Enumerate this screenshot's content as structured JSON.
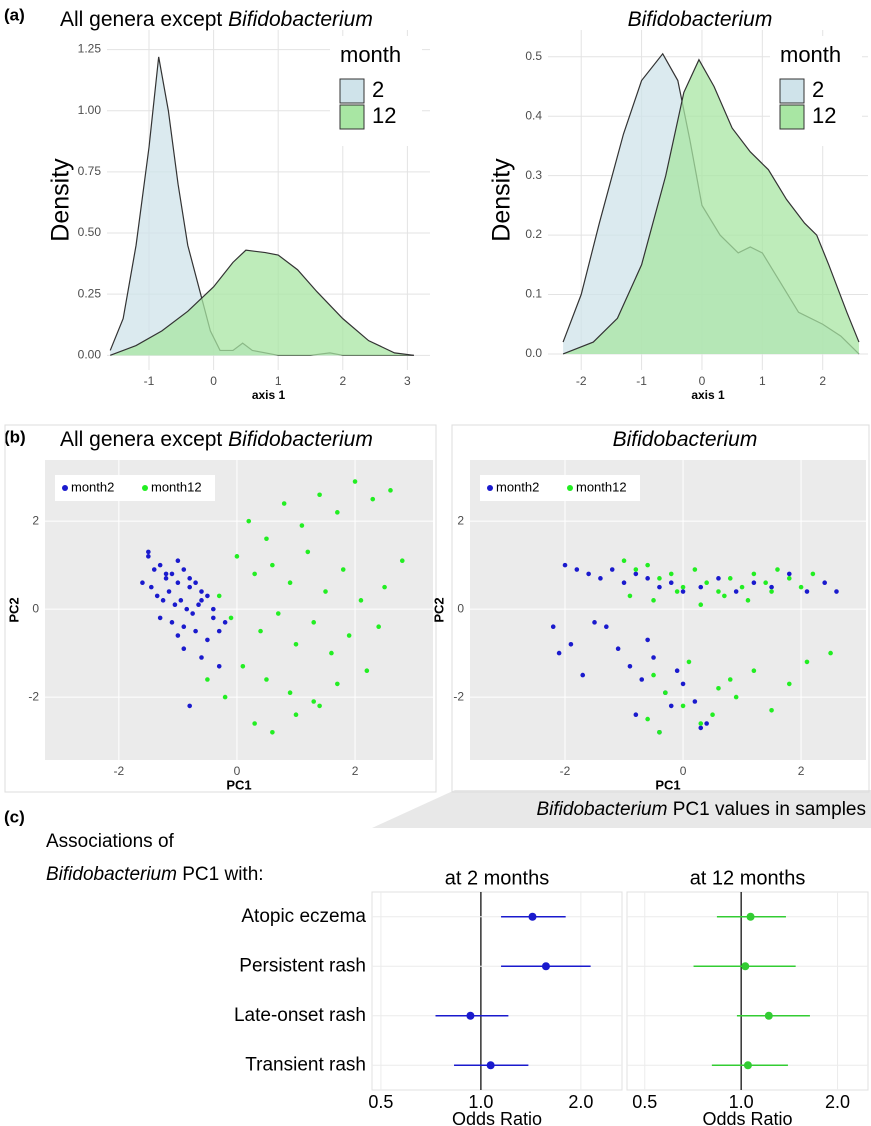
{
  "figure": {
    "panel_labels": [
      "(a)",
      "(b)",
      "(c)"
    ],
    "c_heading_left": [
      [
        {
          "text": "Associations of"
        }
      ],
      [
        {
          "text": "Bifidobacterium",
          "style": "italic"
        },
        {
          "text": " PC1 with:"
        }
      ]
    ],
    "c_heading_right": [
      {
        "text": "Bifidobacterium",
        "style": "italic"
      },
      {
        "text": " PC1 values in samples"
      }
    ]
  },
  "chart_data": [
    {
      "type": "density",
      "title": [
        {
          "text": "All genera except "
        },
        {
          "text": "Bifidobacterium",
          "style": "italic"
        }
      ],
      "xlabel": "axis 1",
      "ylabel": "Density",
      "legend_title": "month",
      "legend": "top-right",
      "xlim": [
        -1.65,
        3.35
      ],
      "ylim": [
        -0.06,
        1.33
      ],
      "xticks": [
        -1,
        0,
        1,
        2,
        3
      ],
      "yticks": [
        {
          "value": 0,
          "label": "0.00"
        },
        {
          "value": 0.25,
          "label": "0.25"
        },
        {
          "value": 0.5,
          "label": "0.50"
        },
        {
          "value": 0.75,
          "label": "0.75"
        },
        {
          "value": 1,
          "label": "1.00"
        },
        {
          "value": 1.25,
          "label": "1.25"
        }
      ],
      "series": [
        {
          "name": "2",
          "color": "#cfe3ea",
          "x": [
            -1.6,
            -1.4,
            -1.2,
            -1.0,
            -0.85,
            -0.7,
            -0.55,
            -0.4,
            -0.2,
            -0.05,
            0.1,
            0.3,
            0.45,
            0.6,
            1.0,
            1.5,
            1.8,
            2.0,
            3.1
          ],
          "values": [
            0.02,
            0.15,
            0.45,
            0.85,
            1.22,
            1.0,
            0.7,
            0.45,
            0.25,
            0.1,
            0.02,
            0.02,
            0.05,
            0.02,
            0.0,
            0.0,
            0.01,
            0.0,
            0.0
          ]
        },
        {
          "name": "12",
          "color": "#a8e6a3",
          "x": [
            -1.6,
            -1.2,
            -0.8,
            -0.4,
            0.0,
            0.3,
            0.5,
            0.8,
            1.0,
            1.3,
            1.6,
            2.0,
            2.4,
            2.8,
            3.1
          ],
          "values": [
            0.0,
            0.04,
            0.1,
            0.18,
            0.28,
            0.38,
            0.43,
            0.42,
            0.41,
            0.35,
            0.26,
            0.15,
            0.06,
            0.01,
            0.0
          ]
        }
      ]
    },
    {
      "type": "density",
      "title": [
        {
          "text": "Bifidobacterium",
          "style": "italic"
        }
      ],
      "xlabel": "axis 1",
      "ylabel": "Density",
      "legend_title": "month",
      "legend": "top-right",
      "xlim": [
        -2.55,
        2.75
      ],
      "ylim": [
        -0.027,
        0.545
      ],
      "xticks": [
        -2,
        -1,
        0,
        1,
        2
      ],
      "yticks": [
        {
          "value": 0,
          "label": "0.0"
        },
        0.1,
        0.2,
        0.3,
        0.4,
        0.5
      ],
      "series": [
        {
          "name": "2",
          "color": "#cfe3ea",
          "x": [
            -2.3,
            -2.0,
            -1.7,
            -1.3,
            -1.0,
            -0.65,
            -0.4,
            -0.2,
            0.0,
            0.3,
            0.6,
            0.8,
            1.0,
            1.3,
            1.6,
            2.0,
            2.3,
            2.6
          ],
          "values": [
            0.02,
            0.1,
            0.22,
            0.37,
            0.46,
            0.505,
            0.46,
            0.36,
            0.25,
            0.2,
            0.17,
            0.18,
            0.17,
            0.12,
            0.07,
            0.05,
            0.03,
            0.0
          ]
        },
        {
          "name": "12",
          "color": "#a8e6a3",
          "x": [
            -2.3,
            -1.8,
            -1.4,
            -1.0,
            -0.6,
            -0.3,
            -0.05,
            0.2,
            0.5,
            0.8,
            1.1,
            1.4,
            1.7,
            1.9,
            2.1,
            2.4,
            2.6
          ],
          "values": [
            0.0,
            0.02,
            0.06,
            0.15,
            0.3,
            0.44,
            0.495,
            0.45,
            0.38,
            0.34,
            0.31,
            0.26,
            0.22,
            0.2,
            0.15,
            0.07,
            0.02
          ]
        }
      ]
    },
    {
      "type": "scatter",
      "title": [
        {
          "text": "All genera except "
        },
        {
          "text": "Bifidobacterium",
          "style": "italic"
        }
      ],
      "xlabel": "PC1",
      "ylabel": "PC2",
      "legend": "top-left",
      "xlim": [
        -3.25,
        3.32
      ],
      "ylim": [
        -3.43,
        3.39
      ],
      "xticks": [
        -2,
        0,
        2
      ],
      "yticks": [
        -2,
        0,
        2
      ],
      "series": [
        {
          "name": "month2",
          "color": "#1a1acd",
          "x": [
            -1.5,
            -1.4,
            -1.3,
            -1.2,
            -1.1,
            -1.0,
            -0.9,
            -0.8,
            -0.7,
            -0.6,
            -0.5,
            -1.45,
            -1.35,
            -1.25,
            -1.15,
            -1.05,
            -0.95,
            -0.85,
            -0.75,
            -0.65,
            -1.3,
            -1.1,
            -0.9,
            -0.7,
            -1.2,
            -1.0,
            -0.8,
            -0.6,
            -0.4,
            -0.3,
            -1.6,
            -1.5,
            -0.5,
            -0.4,
            -0.2,
            -0.9,
            -0.6,
            -0.3,
            -1.0,
            -0.8
          ],
          "values": [
            1.2,
            0.9,
            1.0,
            0.7,
            0.8,
            0.6,
            0.9,
            0.5,
            0.6,
            0.4,
            0.3,
            0.5,
            0.3,
            0.2,
            0.4,
            0.1,
            0.2,
            0.0,
            -0.1,
            0.1,
            -0.2,
            -0.3,
            -0.4,
            -0.5,
            0.8,
            1.1,
            0.7,
            0.2,
            -0.2,
            -0.5,
            0.6,
            1.3,
            -0.7,
            0.0,
            -0.3,
            -0.9,
            -1.1,
            -1.3,
            -0.6,
            -2.2
          ]
        },
        {
          "name": "month12",
          "color": "#22ee22",
          "x": [
            0.2,
            0.5,
            0.8,
            1.1,
            1.4,
            1.7,
            2.0,
            2.3,
            2.6,
            2.8,
            0.0,
            0.3,
            0.6,
            0.9,
            1.2,
            1.5,
            1.8,
            2.1,
            2.4,
            -0.3,
            -0.1,
            0.4,
            0.7,
            1.0,
            1.3,
            1.6,
            1.9,
            2.2,
            0.1,
            0.5,
            0.9,
            1.3,
            1.7,
            -0.5,
            -0.2,
            0.3,
            0.6,
            1.0,
            1.4,
            2.5
          ],
          "values": [
            2.0,
            1.6,
            2.4,
            1.9,
            2.6,
            2.2,
            2.9,
            2.5,
            2.7,
            1.1,
            1.2,
            0.8,
            1.0,
            0.6,
            1.3,
            0.4,
            0.9,
            0.2,
            -0.4,
            0.3,
            -0.2,
            -0.5,
            -0.1,
            -0.8,
            -0.3,
            -1.0,
            -0.6,
            -1.4,
            -1.3,
            -1.6,
            -1.9,
            -2.1,
            -1.7,
            -1.6,
            -2.0,
            -2.6,
            -2.8,
            -2.4,
            -2.2,
            0.5
          ]
        }
      ]
    },
    {
      "type": "scatter",
      "title": [
        {
          "text": "Bifidobacterium",
          "style": "italic"
        }
      ],
      "xlabel": "PC1",
      "ylabel": "PC2",
      "legend": "top-left",
      "xlim": [
        -3.61,
        3.1
      ],
      "ylim": [
        -3.43,
        3.39
      ],
      "xticks": [
        -2,
        0,
        2
      ],
      "yticks": [
        -2,
        0,
        2
      ],
      "series": [
        {
          "name": "month2",
          "color": "#1a1acd",
          "x": [
            -2.0,
            -1.8,
            -1.6,
            -1.4,
            -1.2,
            -1.0,
            -0.8,
            -0.6,
            -0.4,
            -0.2,
            0.0,
            0.3,
            0.6,
            0.9,
            1.2,
            1.5,
            1.8,
            2.1,
            2.4,
            2.6,
            -2.2,
            -1.9,
            -1.5,
            -1.1,
            -0.9,
            -0.7,
            -0.5,
            -0.3,
            -0.1,
            0.2,
            0.4,
            -1.7,
            -1.3,
            -0.8,
            -0.6,
            -0.4,
            -0.2,
            0.0,
            0.3,
            -2.1
          ],
          "values": [
            1.0,
            0.9,
            0.8,
            0.7,
            0.9,
            0.6,
            0.8,
            0.7,
            0.5,
            0.6,
            0.4,
            0.5,
            0.7,
            0.4,
            0.6,
            0.5,
            0.8,
            0.4,
            0.6,
            0.4,
            -0.4,
            -0.8,
            -0.3,
            -0.9,
            -1.3,
            -1.6,
            -1.1,
            -1.9,
            -1.4,
            -2.1,
            -2.6,
            -1.5,
            -0.4,
            -2.4,
            -0.7,
            -2.8,
            -2.2,
            -1.7,
            -2.7,
            -1.0
          ]
        },
        {
          "name": "month12",
          "color": "#22ee22",
          "x": [
            -1.0,
            -0.8,
            -0.6,
            -0.4,
            -0.2,
            0.0,
            0.2,
            0.4,
            0.6,
            0.8,
            1.0,
            1.2,
            1.4,
            1.6,
            1.8,
            2.0,
            2.2,
            -0.9,
            -0.5,
            -0.1,
            0.3,
            0.7,
            1.1,
            1.5,
            -0.5,
            -0.3,
            0.0,
            0.3,
            0.6,
            0.9,
            1.2,
            1.5,
            1.8,
            2.1,
            2.5,
            -0.4,
            0.1,
            0.5,
            -0.6,
            0.8
          ],
          "values": [
            1.1,
            0.9,
            1.0,
            0.7,
            0.8,
            0.5,
            0.9,
            0.6,
            0.4,
            0.7,
            0.5,
            0.8,
            0.6,
            0.9,
            0.7,
            0.5,
            0.8,
            0.3,
            0.2,
            0.4,
            0.1,
            0.3,
            0.2,
            0.4,
            -1.5,
            -1.9,
            -2.2,
            -2.6,
            -1.8,
            -2.0,
            -1.4,
            -2.3,
            -1.7,
            -1.2,
            -1.0,
            -2.8,
            -1.2,
            -2.4,
            -2.5,
            -1.6
          ]
        }
      ]
    },
    {
      "type": "forest",
      "title": "at 2 months",
      "xlabel": "Odds Ratio",
      "xscale": "log",
      "color": "#1a1acd",
      "reference": 1,
      "categories": [
        "Atopic eczema",
        "Persistent rash",
        "Late-onset rash",
        "Transient rash"
      ],
      "values": [
        1.43,
        1.57,
        0.93,
        1.07
      ],
      "lower": [
        1.15,
        1.15,
        0.73,
        0.83
      ],
      "upper": [
        1.8,
        2.14,
        1.21,
        1.39
      ],
      "xlim": [
        0.47,
        2.66
      ],
      "xticks": [
        0.5,
        {
          "value": 1,
          "label": "1.0"
        },
        {
          "value": 2,
          "label": "2.0"
        }
      ]
    },
    {
      "type": "forest",
      "title": "at 12 months",
      "xlabel": "Odds Ratio",
      "xscale": "log",
      "color": "#33cc33",
      "reference": 1,
      "values": [
        1.07,
        1.03,
        1.22,
        1.05
      ],
      "lower": [
        0.84,
        0.71,
        0.97,
        0.81
      ],
      "upper": [
        1.38,
        1.48,
        1.64,
        1.4
      ],
      "xlim": [
        0.44,
        2.49
      ],
      "xticks": [
        0.5,
        {
          "value": 1,
          "label": "1.0"
        },
        {
          "value": 2,
          "label": "2.0"
        }
      ]
    }
  ]
}
